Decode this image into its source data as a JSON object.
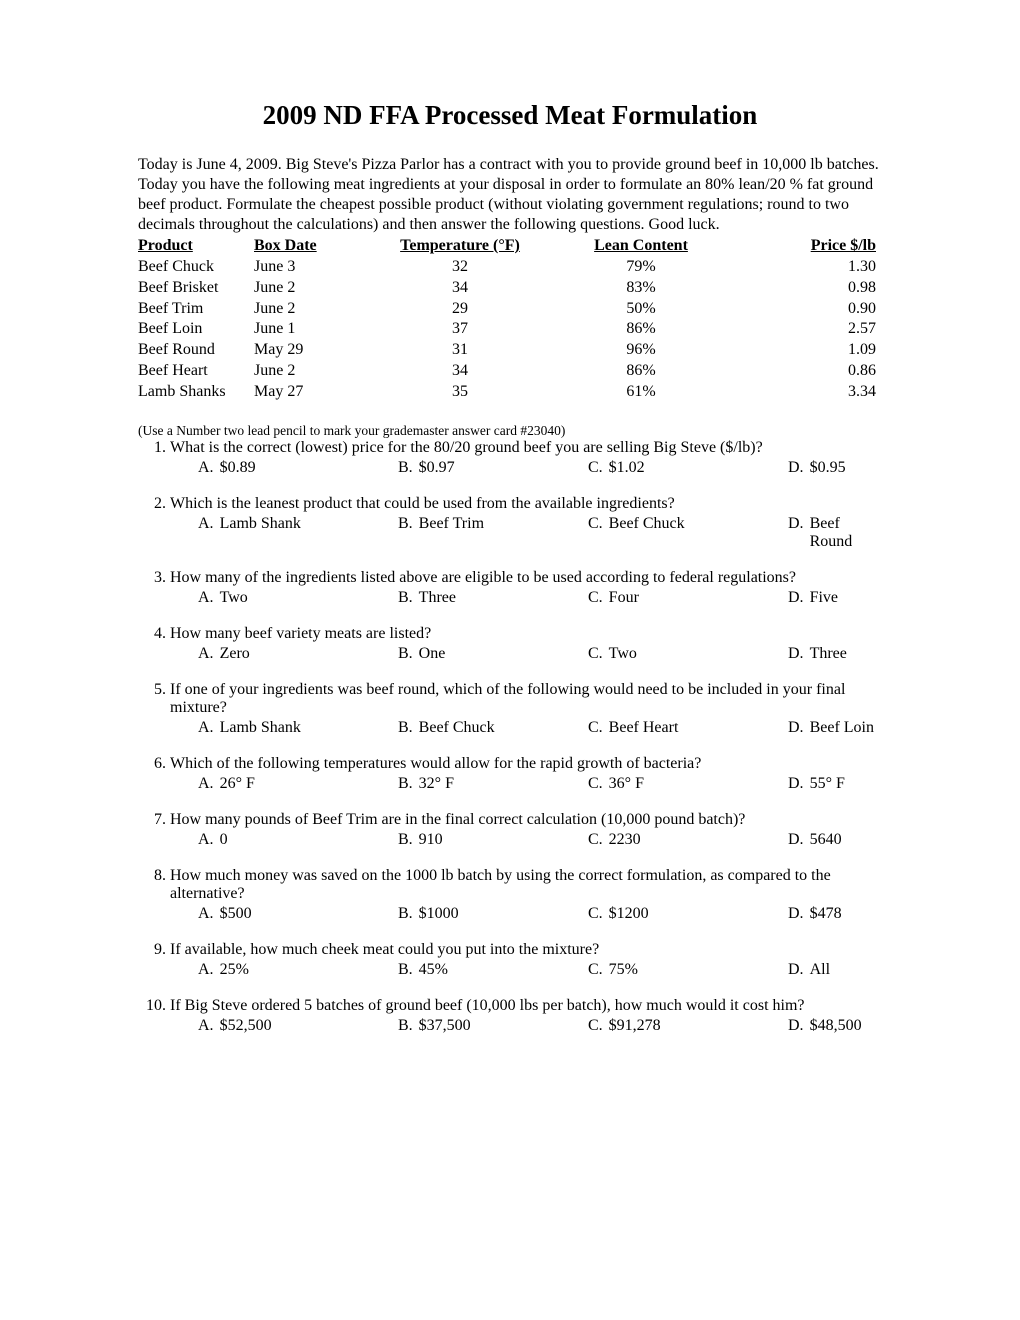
{
  "title": "2009 ND FFA Processed Meat Formulation",
  "intro": "Today is June 4, 2009.  Big Steve's Pizza Parlor has a contract with you to provide ground beef in 10,000 lb batches.  Today you have the following meat ingredients at your disposal in order to formulate an 80% lean/20 % fat ground beef product.  Formulate the cheapest possible product (without violating government regulations; round to two decimals throughout the calculations) and then answer the following questions.  Good luck.",
  "table": {
    "headers": {
      "product": "Product",
      "box_date": "Box Date",
      "temperature": "Temperature (°F)",
      "lean": "Lean Content",
      "price": "Price $/lb"
    },
    "rows": [
      {
        "product": "Beef Chuck",
        "box_date": "June 3",
        "temperature": "32",
        "lean": "79%",
        "price": "1.30"
      },
      {
        "product": "Beef Brisket",
        "box_date": "June 2",
        "temperature": "34",
        "lean": "83%",
        "price": "0.98"
      },
      {
        "product": "Beef Trim",
        "box_date": "June 2",
        "temperature": "29",
        "lean": "50%",
        "price": "0.90"
      },
      {
        "product": "Beef Loin",
        "box_date": "June 1",
        "temperature": "37",
        "lean": "86%",
        "price": "2.57"
      },
      {
        "product": "Beef Round",
        "box_date": "May 29",
        "temperature": "31",
        "lean": "96%",
        "price": "1.09"
      },
      {
        "product": "Beef Heart",
        "box_date": "June 2",
        "temperature": "34",
        "lean": "86%",
        "price": "0.86"
      },
      {
        "product": "Lamb Shanks",
        "box_date": "May 27",
        "temperature": "35",
        "lean": "61%",
        "price": "3.34"
      }
    ]
  },
  "note": "(Use a Number two lead pencil to mark your grademaster answer card #23040)",
  "questions": [
    {
      "n": "1.",
      "text": "What is the correct (lowest) price for the 80/20 ground beef you are selling Big Steve ($/lb)?",
      "choices": {
        "a": "$0.89",
        "b": "$0.97",
        "c": "$1.02",
        "d": "$0.95"
      }
    },
    {
      "n": "2.",
      "text": "Which is the leanest product that could be used from the available ingredients?",
      "choices": {
        "a": "Lamb Shank",
        "b": "Beef Trim",
        "c": "Beef Chuck",
        "d": "Beef Round"
      }
    },
    {
      "n": "3.",
      "text": "How many of the ingredients listed above are eligible to be used according to federal regulations?",
      "choices": {
        "a": "Two",
        "b": "Three",
        "c": "Four",
        "d": "Five"
      }
    },
    {
      "n": "4.",
      "text": "How many beef variety meats are listed?",
      "choices": {
        "a": "Zero",
        "b": "One",
        "c": "Two",
        "d": "Three"
      }
    },
    {
      "n": "5.",
      "text": "If one of your ingredients was beef round, which of the following would need to be included in your final mixture?",
      "choices": {
        "a": "Lamb Shank",
        "b": "Beef Chuck",
        "c": "Beef Heart",
        "d": "Beef Loin"
      }
    },
    {
      "n": "6.",
      "text": "Which of the following temperatures would allow for the rapid growth of bacteria?",
      "choices": {
        "a": "26° F",
        "b": "32° F",
        "c": "36° F",
        "d": "55° F"
      }
    },
    {
      "n": "7.",
      "text": "How many pounds of Beef Trim are in the final correct calculation (10,000 pound batch)?",
      "choices": {
        "a": "0",
        "b": "910",
        "c": "2230",
        "d": "5640"
      }
    },
    {
      "n": "8.",
      "text": "How much money was saved on the 1000 lb batch by using the correct formulation, as compared to the alternative?",
      "choices": {
        "a": "$500",
        "b": "$1000",
        "c": "$1200",
        "d": "$478"
      }
    },
    {
      "n": "9.",
      "text": "If available, how much cheek meat could you put into the mixture?",
      "choices": {
        "a": "25%",
        "b": "45%",
        "c": "75%",
        "d": "All"
      }
    },
    {
      "n": "10.",
      "text": "If Big Steve ordered 5 batches of ground beef (10,000 lbs per batch), how much would it cost him?",
      "choices": {
        "a": "$52,500",
        "b": "$37,500",
        "c": "$91,278",
        "d": "$48,500"
      }
    }
  ],
  "choice_labels": {
    "a": "A.",
    "b": "B.",
    "c": "C.",
    "d": "D."
  }
}
